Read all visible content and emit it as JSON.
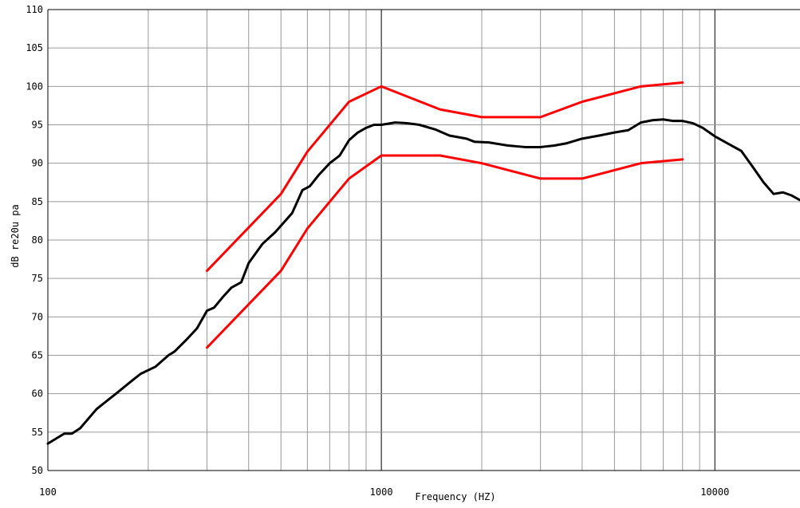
{
  "chart_data": {
    "type": "line",
    "title": "",
    "xlabel": "Frequency (HZ)",
    "ylabel": "dB re20u pa",
    "xscale": "log",
    "xlim": [
      100,
      18000
    ],
    "ylim": [
      50,
      110
    ],
    "grid": true,
    "x_tick_labels": [
      "100",
      "1000",
      "10000"
    ],
    "y_tick_labels": [
      "50",
      "55",
      "60",
      "65",
      "70",
      "75",
      "80",
      "85",
      "90",
      "95",
      "100",
      "105",
      "110"
    ],
    "series": [
      {
        "color": "#000000",
        "points": [
          [
            100,
            53.5
          ],
          [
            112,
            54.8
          ],
          [
            118,
            54.8
          ],
          [
            125,
            55.5
          ],
          [
            140,
            58
          ],
          [
            160,
            60
          ],
          [
            180,
            61.8
          ],
          [
            190,
            62.6
          ],
          [
            210,
            63.5
          ],
          [
            230,
            65
          ],
          [
            240,
            65.5
          ],
          [
            260,
            67
          ],
          [
            280,
            68.5
          ],
          [
            300,
            70.8
          ],
          [
            315,
            71.2
          ],
          [
            335,
            72.6
          ],
          [
            355,
            73.8
          ],
          [
            380,
            74.5
          ],
          [
            400,
            77
          ],
          [
            440,
            79.5
          ],
          [
            480,
            81
          ],
          [
            540,
            83.5
          ],
          [
            580,
            86.5
          ],
          [
            610,
            87
          ],
          [
            650,
            88.5
          ],
          [
            700,
            90
          ],
          [
            750,
            91
          ],
          [
            800,
            93
          ],
          [
            850,
            94
          ],
          [
            900,
            94.6
          ],
          [
            950,
            95
          ],
          [
            1000,
            95
          ],
          [
            1100,
            95.3
          ],
          [
            1200,
            95.2
          ],
          [
            1300,
            95
          ],
          [
            1450,
            94.4
          ],
          [
            1600,
            93.6
          ],
          [
            1800,
            93.2
          ],
          [
            1900,
            92.8
          ],
          [
            2100,
            92.7
          ],
          [
            2400,
            92.3
          ],
          [
            2700,
            92.1
          ],
          [
            3000,
            92.1
          ],
          [
            3300,
            92.3
          ],
          [
            3600,
            92.6
          ],
          [
            4000,
            93.2
          ],
          [
            4500,
            93.6
          ],
          [
            5000,
            94
          ],
          [
            5500,
            94.3
          ],
          [
            6000,
            95.3
          ],
          [
            6500,
            95.6
          ],
          [
            7000,
            95.7
          ],
          [
            7500,
            95.5
          ],
          [
            8000,
            95.5
          ],
          [
            8600,
            95.2
          ],
          [
            9200,
            94.6
          ],
          [
            10000,
            93.5
          ],
          [
            11000,
            92.5
          ],
          [
            12000,
            91.6
          ],
          [
            13000,
            89.5
          ],
          [
            14000,
            87.5
          ],
          [
            15000,
            86
          ],
          [
            16000,
            86.2
          ],
          [
            17000,
            85.8
          ],
          [
            18000,
            85.2
          ]
        ]
      },
      {
        "color": "#ff0000",
        "points": [
          [
            300,
            76
          ],
          [
            500,
            86
          ],
          [
            600,
            91.5
          ],
          [
            800,
            98
          ],
          [
            1000,
            100
          ],
          [
            1500,
            97
          ],
          [
            2000,
            96
          ],
          [
            3000,
            96
          ],
          [
            4000,
            98
          ],
          [
            6000,
            100
          ],
          [
            8000,
            100.5
          ]
        ]
      },
      {
        "color": "#ff0000",
        "points": [
          [
            300,
            66
          ],
          [
            500,
            76
          ],
          [
            600,
            81.5
          ],
          [
            800,
            88
          ],
          [
            1000,
            91
          ],
          [
            1500,
            91
          ],
          [
            2000,
            90
          ],
          [
            3000,
            88
          ],
          [
            4000,
            88
          ],
          [
            6000,
            90
          ],
          [
            8000,
            90.5
          ]
        ]
      }
    ]
  }
}
